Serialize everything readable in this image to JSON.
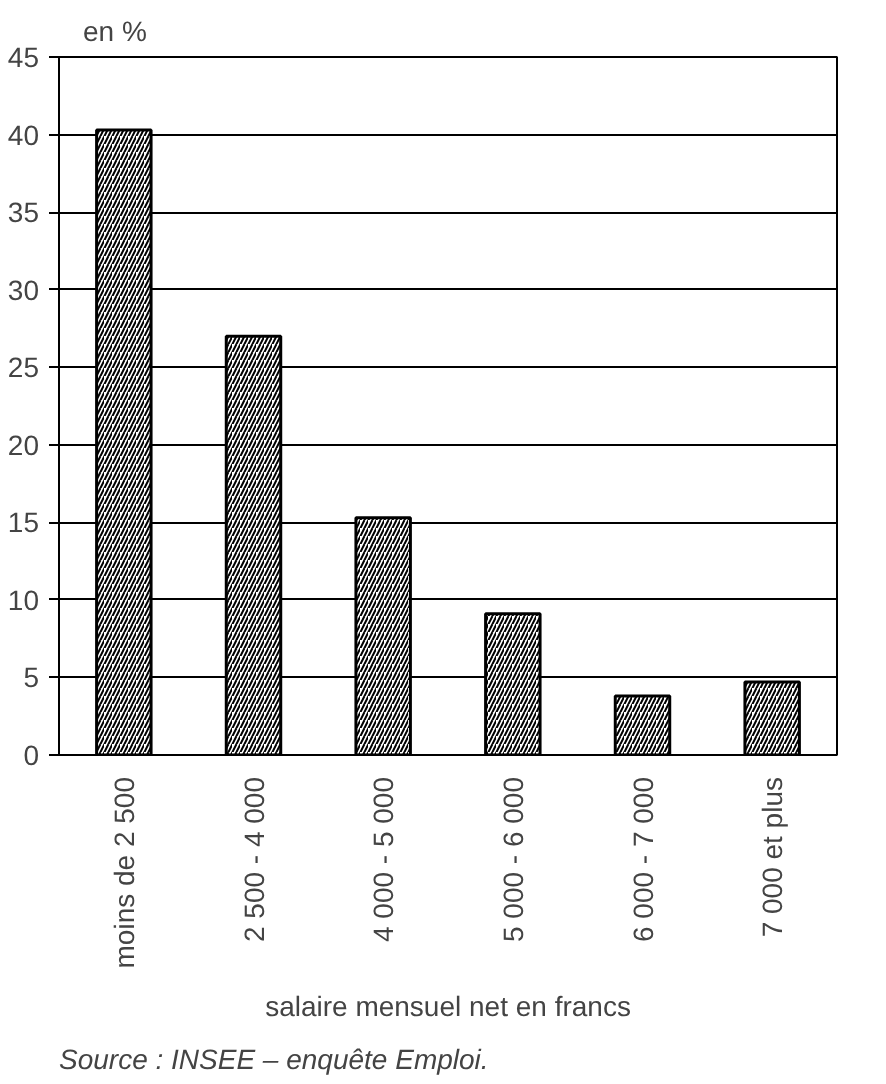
{
  "chart_data": {
    "type": "bar",
    "ylabel": "en %",
    "xlabel": "salaire mensuel net en francs",
    "categories": [
      "moins de 2 500",
      "2 500 - 4 000",
      "4 000 - 5 000",
      "5 000 - 6 000",
      "6 000 - 7 000",
      "7 000 et plus"
    ],
    "values": [
      40.3,
      27.0,
      15.3,
      9.1,
      3.8,
      4.7
    ],
    "color": "#000000",
    "ylim": [
      0,
      45
    ],
    "yticks": [
      0,
      5,
      10,
      15,
      20,
      25,
      30,
      35,
      40,
      45
    ],
    "grid": "y",
    "annotations": [
      "Source : INSEE – enquête Emploi."
    ]
  }
}
